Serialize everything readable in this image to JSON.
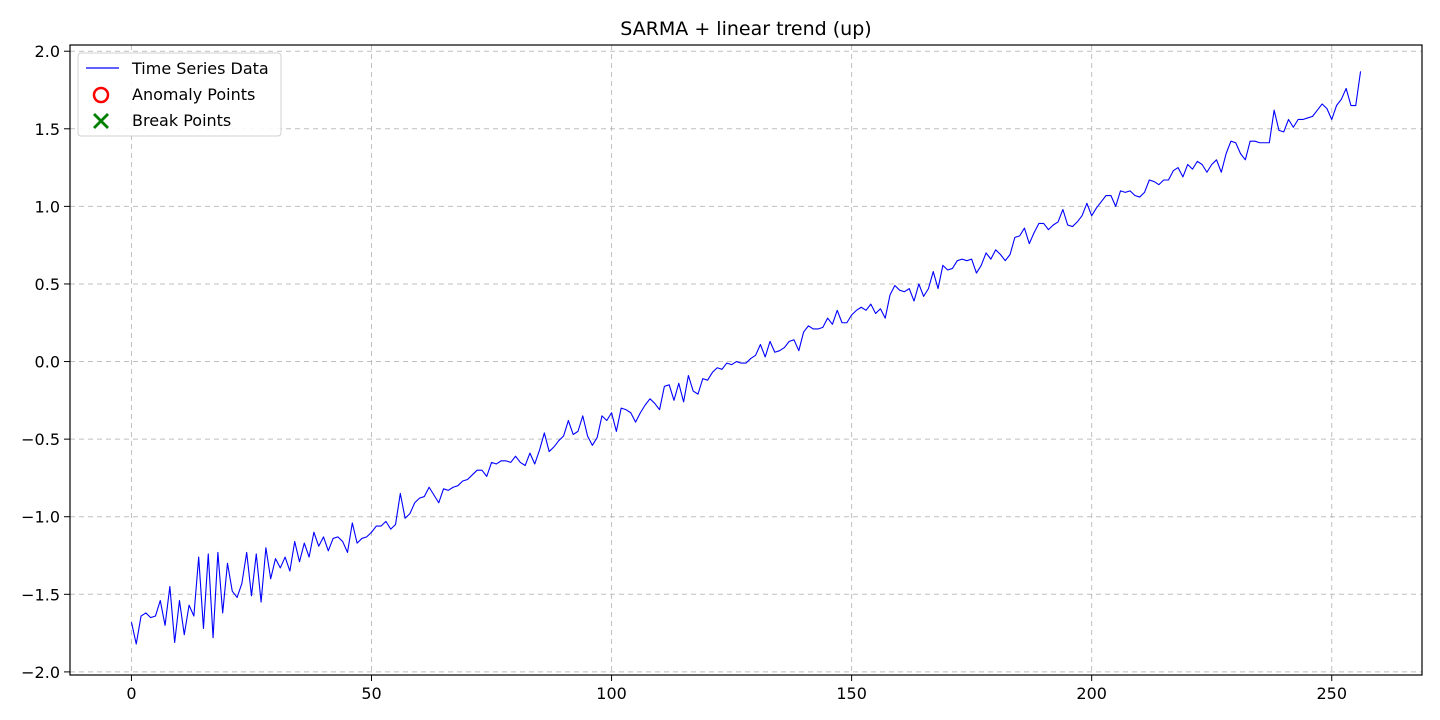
{
  "chart_data": {
    "type": "line",
    "title": "SARMA + linear trend (up)",
    "xlabel": "",
    "ylabel": "",
    "xlim": [
      -12.8,
      268.8
    ],
    "ylim": [
      -2.02,
      2.04
    ],
    "x_ticks": [
      0,
      50,
      100,
      150,
      200,
      250
    ],
    "x_tick_labels": [
      "0",
      "50",
      "100",
      "150",
      "200",
      "250"
    ],
    "y_ticks": [
      -2.0,
      -1.5,
      -1.0,
      -0.5,
      0.0,
      0.5,
      1.0,
      1.5,
      2.0
    ],
    "y_tick_labels": [
      "−2.0",
      "−1.5",
      "−1.0",
      "−0.5",
      "0.0",
      "0.5",
      "1.0",
      "1.5",
      "2.0"
    ],
    "grid": true,
    "legend_position": "top-left",
    "legend": [
      {
        "label": "Time Series Data",
        "marker": "line",
        "color": "#0000ff"
      },
      {
        "label": "Anomaly Points",
        "marker": "circle",
        "color": "#ff0000"
      },
      {
        "label": "Break Points",
        "marker": "x",
        "color": "#008000"
      }
    ],
    "series": [
      {
        "name": "Time Series Data",
        "color": "#0000ff",
        "values": [
          -1.68,
          -1.82,
          -1.64,
          -1.62,
          -1.65,
          -1.64,
          -1.54,
          -1.7,
          -1.45,
          -1.81,
          -1.54,
          -1.76,
          -1.57,
          -1.64,
          -1.26,
          -1.72,
          -1.24,
          -1.78,
          -1.23,
          -1.62,
          -1.3,
          -1.48,
          -1.52,
          -1.43,
          -1.23,
          -1.51,
          -1.24,
          -1.55,
          -1.2,
          -1.4,
          -1.27,
          -1.33,
          -1.26,
          -1.35,
          -1.16,
          -1.29,
          -1.17,
          -1.26,
          -1.1,
          -1.19,
          -1.13,
          -1.22,
          -1.14,
          -1.13,
          -1.16,
          -1.23,
          -1.04,
          -1.17,
          -1.14,
          -1.13,
          -1.1,
          -1.06,
          -1.06,
          -1.03,
          -1.08,
          -1.05,
          -0.85,
          -1.01,
          -0.98,
          -0.91,
          -0.88,
          -0.87,
          -0.81,
          -0.86,
          -0.91,
          -0.82,
          -0.83,
          -0.81,
          -0.8,
          -0.77,
          -0.76,
          -0.73,
          -0.7,
          -0.7,
          -0.74,
          -0.65,
          -0.66,
          -0.64,
          -0.64,
          -0.65,
          -0.61,
          -0.65,
          -0.67,
          -0.59,
          -0.66,
          -0.57,
          -0.46,
          -0.58,
          -0.55,
          -0.51,
          -0.48,
          -0.38,
          -0.47,
          -0.45,
          -0.35,
          -0.48,
          -0.54,
          -0.49,
          -0.35,
          -0.38,
          -0.33,
          -0.45,
          -0.3,
          -0.31,
          -0.33,
          -0.39,
          -0.33,
          -0.28,
          -0.24,
          -0.27,
          -0.31,
          -0.16,
          -0.15,
          -0.25,
          -0.14,
          -0.26,
          -0.09,
          -0.19,
          -0.21,
          -0.11,
          -0.12,
          -0.07,
          -0.04,
          -0.05,
          -0.01,
          -0.02,
          0.0,
          -0.01,
          -0.01,
          0.02,
          0.04,
          0.11,
          0.03,
          0.13,
          0.06,
          0.07,
          0.09,
          0.13,
          0.14,
          0.07,
          0.19,
          0.23,
          0.21,
          0.21,
          0.22,
          0.28,
          0.24,
          0.33,
          0.25,
          0.25,
          0.3,
          0.33,
          0.35,
          0.33,
          0.37,
          0.31,
          0.34,
          0.28,
          0.43,
          0.49,
          0.46,
          0.45,
          0.47,
          0.39,
          0.5,
          0.42,
          0.47,
          0.58,
          0.47,
          0.62,
          0.59,
          0.6,
          0.65,
          0.66,
          0.65,
          0.66,
          0.57,
          0.62,
          0.7,
          0.66,
          0.72,
          0.69,
          0.65,
          0.69,
          0.8,
          0.81,
          0.86,
          0.76,
          0.83,
          0.89,
          0.89,
          0.85,
          0.88,
          0.9,
          0.98,
          0.88,
          0.87,
          0.9,
          0.94,
          1.02,
          0.94,
          0.99,
          1.03,
          1.07,
          1.07,
          1.0,
          1.1,
          1.09,
          1.1,
          1.07,
          1.06,
          1.09,
          1.17,
          1.16,
          1.14,
          1.17,
          1.17,
          1.23,
          1.25,
          1.19,
          1.27,
          1.24,
          1.29,
          1.27,
          1.22,
          1.27,
          1.3,
          1.22,
          1.34,
          1.42,
          1.41,
          1.34,
          1.3,
          1.42,
          1.42,
          1.41,
          1.41,
          1.41,
          1.62,
          1.49,
          1.48,
          1.56,
          1.51,
          1.56,
          1.56,
          1.57,
          1.58,
          1.62,
          1.66,
          1.63,
          1.56,
          1.65,
          1.69,
          1.76,
          1.65,
          1.65,
          1.87
        ]
      }
    ]
  }
}
